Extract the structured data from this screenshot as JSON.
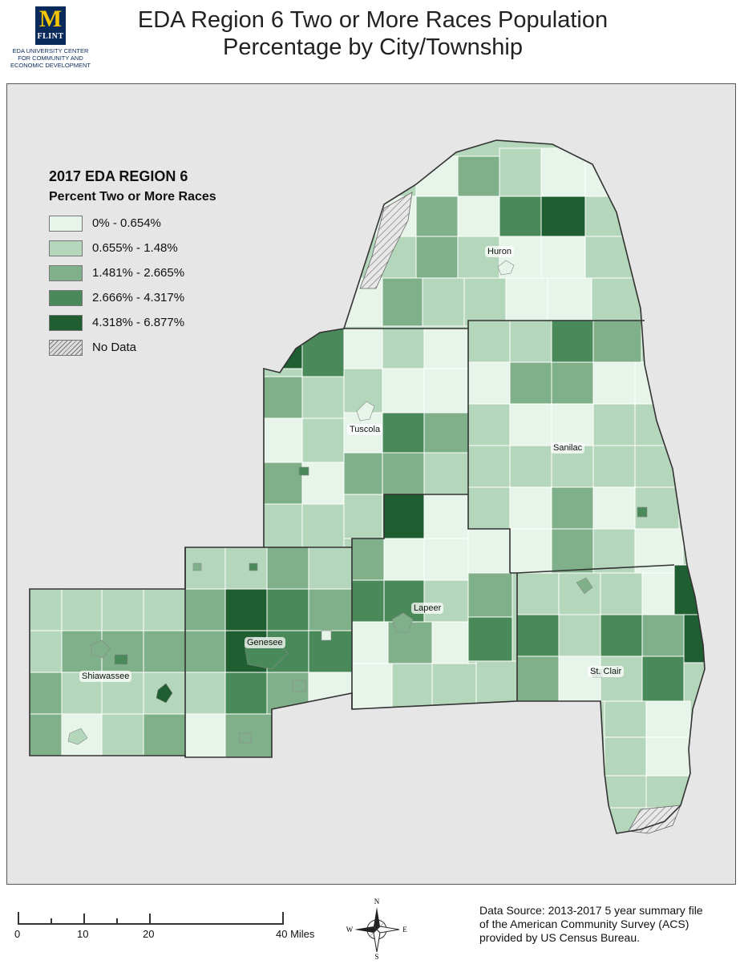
{
  "title": {
    "line1": "EDA Region 6 Two or More Races Population",
    "line2": "Percentage by City/Township"
  },
  "logo": {
    "letter": "M",
    "campus": "FLINT",
    "caption_lines": [
      "EDA UNIVERSITY CENTER",
      "FOR COMMUNITY AND",
      "ECONOMIC DEVELOPMENT"
    ]
  },
  "legend": {
    "title": "2017 EDA REGION 6",
    "subtitle": "Percent Two or More Races",
    "classes": [
      {
        "label": "0% - 0.654%",
        "color": "#e6f4ea"
      },
      {
        "label": "0.655% - 1.48%",
        "color": "#b4d6ba"
      },
      {
        "label": "1.481% - 2.665%",
        "color": "#7fb08a"
      },
      {
        "label": "2.666% - 4.317%",
        "color": "#4a8a5a"
      },
      {
        "label": "4.318% - 6.877%",
        "color": "#1e5e30"
      }
    ],
    "no_data_label": "No Data"
  },
  "counties": [
    "Huron",
    "Tuscola",
    "Sanilac",
    "Genesee",
    "Lapeer",
    "Shiawassee",
    "St. Clair"
  ],
  "scale_bar": {
    "ticks": [
      "0",
      "10",
      "20",
      "40 Miles"
    ]
  },
  "north_arrow": {
    "n": "N",
    "s": "S",
    "e": "E",
    "w": "W"
  },
  "source": {
    "lines": [
      "Data Source: 2013-2017 5 year summary file",
      "of the American Community Survey (ACS)",
      "provided by US Census Bureau."
    ]
  },
  "colors": {
    "background": "#e6e6e6",
    "boundary": "#333333",
    "township_line": "#ffffff"
  }
}
